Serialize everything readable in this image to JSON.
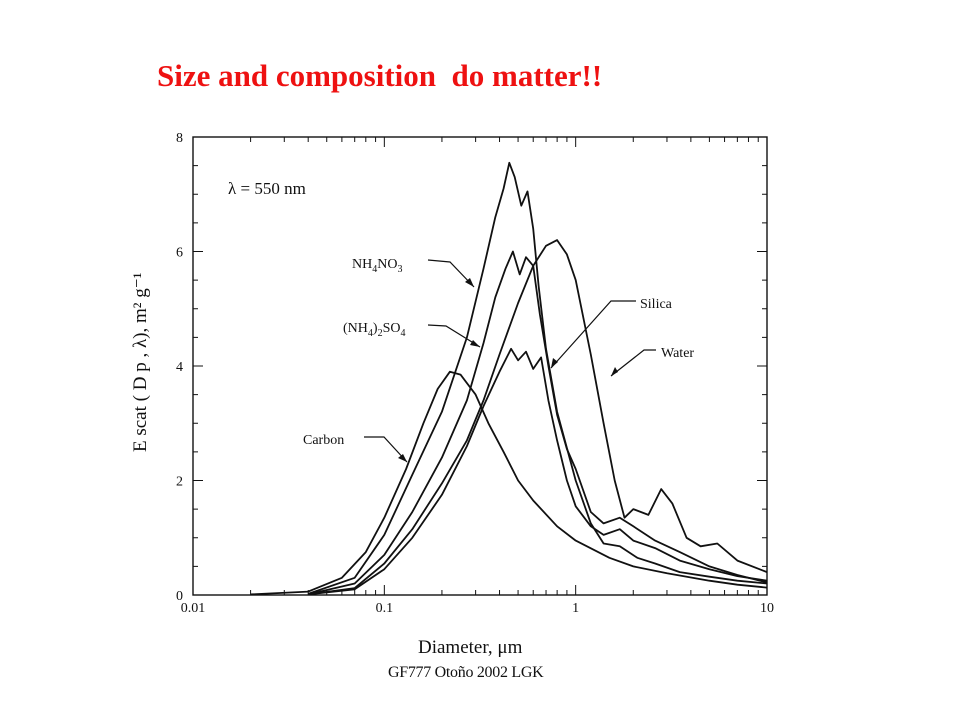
{
  "slide": {
    "title": "Size and composition  do matter!!",
    "footer": "GF777 Otoño 2002 LGK",
    "accent_color": "#ee1111"
  },
  "chart_data": {
    "type": "line",
    "title": "",
    "xlabel": "Diameter,  μm",
    "ylabel": "E scat ( D p , λ),   m² g⁻¹",
    "x_scale": "log",
    "xlim": [
      0.01,
      10
    ],
    "ylim": [
      0,
      8
    ],
    "x_ticks": [
      {
        "value": 0.01,
        "label": "0.01"
      },
      {
        "value": 0.1,
        "label": "0.1"
      },
      {
        "value": 1,
        "label": "1"
      },
      {
        "value": 10,
        "label": "10"
      }
    ],
    "y_ticks": [
      {
        "value": 0,
        "label": "0"
      },
      {
        "value": 2,
        "label": "2"
      },
      {
        "value": 4,
        "label": "4"
      },
      {
        "value": 6,
        "label": "6"
      },
      {
        "value": 8,
        "label": "8"
      }
    ],
    "annotation": "λ = 550 nm",
    "legend_style": "callout labels with arrows",
    "series": [
      {
        "name": "NH4NO3",
        "label_main": "NH",
        "label_sub1": "4",
        "label_mid": "NO",
        "label_sub2": "3",
        "points": [
          [
            0.04,
            0.02
          ],
          [
            0.07,
            0.3
          ],
          [
            0.1,
            1.05
          ],
          [
            0.14,
            2.1
          ],
          [
            0.2,
            3.2
          ],
          [
            0.27,
            4.5
          ],
          [
            0.33,
            5.7
          ],
          [
            0.38,
            6.6
          ],
          [
            0.42,
            7.1
          ],
          [
            0.45,
            7.55
          ],
          [
            0.48,
            7.3
          ],
          [
            0.52,
            6.8
          ],
          [
            0.56,
            7.05
          ],
          [
            0.6,
            6.4
          ],
          [
            0.64,
            5.4
          ],
          [
            0.7,
            4.3
          ],
          [
            0.8,
            3.2
          ],
          [
            1.0,
            2.0
          ],
          [
            1.2,
            1.25
          ],
          [
            1.4,
            0.9
          ],
          [
            1.7,
            0.85
          ],
          [
            2.1,
            0.65
          ],
          [
            2.6,
            0.55
          ],
          [
            3.5,
            0.4
          ],
          [
            5,
            0.32
          ],
          [
            7,
            0.25
          ],
          [
            10,
            0.2
          ]
        ]
      },
      {
        "name": "(NH4)2SO4",
        "label_main": "(NH",
        "label_sub1": "4",
        "label_mid": ")",
        "label_sub2": "2",
        "label_end": "SO",
        "label_sub3": "4",
        "points": [
          [
            0.04,
            0.01
          ],
          [
            0.07,
            0.2
          ],
          [
            0.1,
            0.7
          ],
          [
            0.14,
            1.45
          ],
          [
            0.2,
            2.4
          ],
          [
            0.27,
            3.4
          ],
          [
            0.33,
            4.4
          ],
          [
            0.38,
            5.2
          ],
          [
            0.43,
            5.7
          ],
          [
            0.47,
            6.0
          ],
          [
            0.51,
            5.6
          ],
          [
            0.55,
            5.9
          ],
          [
            0.6,
            5.75
          ],
          [
            0.65,
            4.9
          ],
          [
            0.72,
            4.0
          ],
          [
            0.8,
            3.15
          ],
          [
            0.9,
            2.55
          ],
          [
            1.0,
            2.2
          ],
          [
            1.2,
            1.45
          ],
          [
            1.4,
            1.25
          ],
          [
            1.7,
            1.35
          ],
          [
            2.0,
            1.2
          ],
          [
            2.6,
            0.95
          ],
          [
            3.5,
            0.75
          ],
          [
            5,
            0.5
          ],
          [
            7,
            0.35
          ],
          [
            10,
            0.22
          ]
        ]
      },
      {
        "name": "Silica",
        "points": [
          [
            0.04,
            0.01
          ],
          [
            0.07,
            0.1
          ],
          [
            0.1,
            0.45
          ],
          [
            0.14,
            1.0
          ],
          [
            0.2,
            1.75
          ],
          [
            0.27,
            2.6
          ],
          [
            0.33,
            3.3
          ],
          [
            0.4,
            3.9
          ],
          [
            0.46,
            4.3
          ],
          [
            0.5,
            4.1
          ],
          [
            0.55,
            4.25
          ],
          [
            0.6,
            3.95
          ],
          [
            0.66,
            4.15
          ],
          [
            0.72,
            3.4
          ],
          [
            0.8,
            2.7
          ],
          [
            0.9,
            2.0
          ],
          [
            1.0,
            1.55
          ],
          [
            1.2,
            1.2
          ],
          [
            1.4,
            1.05
          ],
          [
            1.7,
            1.15
          ],
          [
            2.0,
            0.95
          ],
          [
            2.6,
            0.82
          ],
          [
            3.5,
            0.6
          ],
          [
            5,
            0.45
          ],
          [
            7,
            0.33
          ],
          [
            10,
            0.25
          ]
        ]
      },
      {
        "name": "Water",
        "points": [
          [
            0.04,
            0.01
          ],
          [
            0.07,
            0.12
          ],
          [
            0.1,
            0.55
          ],
          [
            0.14,
            1.15
          ],
          [
            0.2,
            1.95
          ],
          [
            0.27,
            2.7
          ],
          [
            0.33,
            3.4
          ],
          [
            0.4,
            4.2
          ],
          [
            0.5,
            5.1
          ],
          [
            0.6,
            5.75
          ],
          [
            0.7,
            6.1
          ],
          [
            0.8,
            6.2
          ],
          [
            0.9,
            5.95
          ],
          [
            1.0,
            5.5
          ],
          [
            1.2,
            4.2
          ],
          [
            1.4,
            3.0
          ],
          [
            1.6,
            2.0
          ],
          [
            1.8,
            1.35
          ],
          [
            2.0,
            1.5
          ],
          [
            2.4,
            1.4
          ],
          [
            2.8,
            1.85
          ],
          [
            3.2,
            1.6
          ],
          [
            3.8,
            1.0
          ],
          [
            4.5,
            0.85
          ],
          [
            5.5,
            0.9
          ],
          [
            7,
            0.6
          ],
          [
            10,
            0.4
          ]
        ]
      },
      {
        "name": "Carbon",
        "points": [
          [
            0.02,
            0.01
          ],
          [
            0.04,
            0.06
          ],
          [
            0.06,
            0.3
          ],
          [
            0.08,
            0.75
          ],
          [
            0.1,
            1.35
          ],
          [
            0.13,
            2.2
          ],
          [
            0.16,
            3.0
          ],
          [
            0.19,
            3.6
          ],
          [
            0.22,
            3.9
          ],
          [
            0.25,
            3.85
          ],
          [
            0.3,
            3.5
          ],
          [
            0.35,
            3.0
          ],
          [
            0.42,
            2.5
          ],
          [
            0.5,
            2.0
          ],
          [
            0.6,
            1.65
          ],
          [
            0.8,
            1.2
          ],
          [
            1.0,
            0.95
          ],
          [
            1.5,
            0.65
          ],
          [
            2,
            0.5
          ],
          [
            3,
            0.38
          ],
          [
            5,
            0.25
          ],
          [
            7,
            0.18
          ],
          [
            10,
            0.13
          ]
        ]
      }
    ]
  }
}
